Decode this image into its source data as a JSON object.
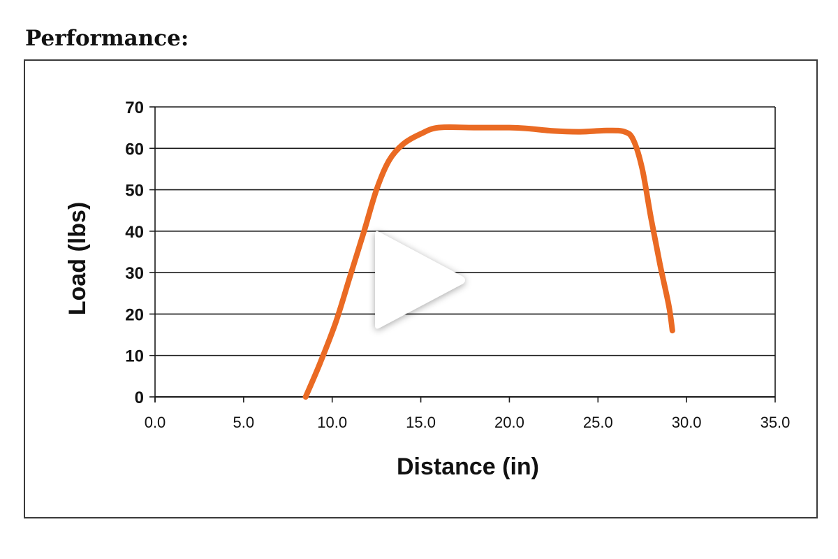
{
  "heading": "Performance:",
  "chart_data": {
    "type": "line",
    "title": "",
    "xlabel": "Distance (in)",
    "ylabel": "Load (lbs)",
    "xlim": [
      0,
      35
    ],
    "ylim": [
      0,
      70
    ],
    "x_ticks": [
      0,
      5,
      10,
      15,
      20,
      25,
      30,
      35
    ],
    "x_tick_labels": [
      "0.0",
      "5.0",
      "10.0",
      "15.0",
      "20.0",
      "25.0",
      "30.0",
      "35.0"
    ],
    "y_ticks": [
      0,
      10,
      20,
      30,
      40,
      50,
      60,
      70
    ],
    "y_tick_labels": [
      "0",
      "10",
      "20",
      "30",
      "40",
      "50",
      "60",
      "70"
    ],
    "grid": "horizontal",
    "legend": "none",
    "series": [
      {
        "color": "#ea6a23",
        "points": [
          [
            8.5,
            0
          ],
          [
            9.3,
            8
          ],
          [
            10.2,
            18
          ],
          [
            11.0,
            29
          ],
          [
            11.8,
            40
          ],
          [
            12.5,
            50
          ],
          [
            13.2,
            57
          ],
          [
            14.0,
            61
          ],
          [
            15.0,
            63.5
          ],
          [
            16.0,
            65
          ],
          [
            18.0,
            65
          ],
          [
            20.0,
            65
          ],
          [
            21.0,
            64.8
          ],
          [
            22.5,
            64.2
          ],
          [
            24.0,
            64
          ],
          [
            25.5,
            64.3
          ],
          [
            26.5,
            64
          ],
          [
            27.0,
            62
          ],
          [
            27.5,
            55
          ],
          [
            28.0,
            43
          ],
          [
            28.5,
            32
          ],
          [
            29.0,
            22
          ],
          [
            29.2,
            16
          ]
        ]
      }
    ]
  },
  "overlay": {
    "icon": "play-icon"
  }
}
